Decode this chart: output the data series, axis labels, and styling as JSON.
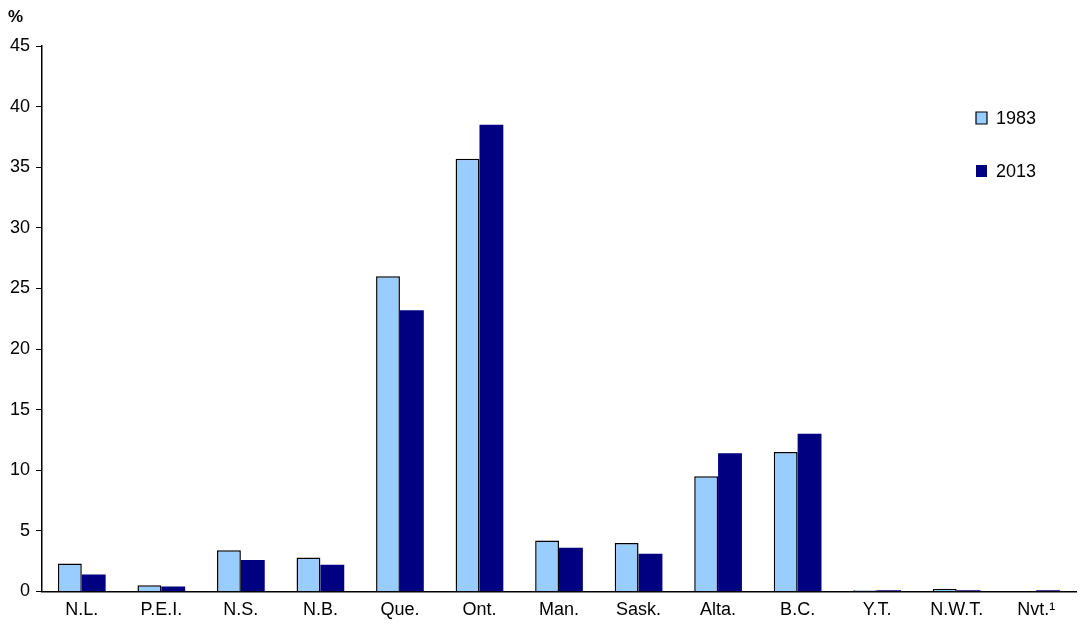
{
  "chart_data": {
    "type": "bar",
    "ylabel": "%",
    "categories": [
      "N.L.",
      "P.E.I.",
      "N.S.",
      "N.B.",
      "Que.",
      "Ont.",
      "Man.",
      "Sask.",
      "Alta.",
      "B.C.",
      "Y.T.",
      "N.W.T.",
      "Nvt.¹"
    ],
    "series": [
      {
        "name": "1983",
        "color": "#99ccff",
        "values": [
          2.3,
          0.5,
          3.4,
          2.8,
          26.0,
          35.7,
          4.2,
          4.0,
          9.5,
          11.5,
          0.1,
          0.2,
          null
        ]
      },
      {
        "name": "2013",
        "color": "#000080",
        "values": [
          1.4,
          0.4,
          2.6,
          2.2,
          23.2,
          38.5,
          3.6,
          3.1,
          11.4,
          13.0,
          0.1,
          0.1,
          0.1
        ]
      }
    ],
    "ylim": [
      0,
      45
    ],
    "yticks": [
      0,
      5,
      10,
      15,
      20,
      25,
      30,
      35,
      40,
      45
    ],
    "grid": false,
    "legend": "top right"
  }
}
